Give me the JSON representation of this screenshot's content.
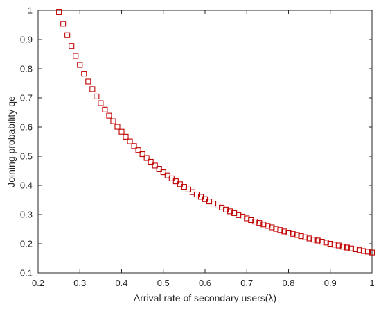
{
  "chart_data": {
    "type": "scatter",
    "title": "",
    "xlabel": "Arrival rate of secondary users(λ)",
    "ylabel": "Joining probability qe",
    "xlim": [
      0.2,
      1.0
    ],
    "ylim": [
      0.1,
      1.0
    ],
    "xticks": [
      "0.2",
      "0.3",
      "0.4",
      "0.5",
      "0.6",
      "0.7",
      "0.8",
      "0.9",
      "1"
    ],
    "yticks": [
      "0.1",
      "0.2",
      "0.3",
      "0.4",
      "0.5",
      "0.6",
      "0.7",
      "0.8",
      "0.9",
      "1"
    ],
    "grid": false,
    "marker": "square",
    "marker_color": "#c00000",
    "series": [
      {
        "x": [
          0.25,
          0.26,
          0.27,
          0.28,
          0.29,
          0.3,
          0.31,
          0.32,
          0.33,
          0.34,
          0.35,
          0.36,
          0.37,
          0.38,
          0.39,
          0.4,
          0.41,
          0.42,
          0.43,
          0.44,
          0.45,
          0.46,
          0.47,
          0.48,
          0.49,
          0.5,
          0.51,
          0.52,
          0.53,
          0.54,
          0.55,
          0.56,
          0.57,
          0.58,
          0.59,
          0.6,
          0.61,
          0.62,
          0.63,
          0.64,
          0.65,
          0.66,
          0.67,
          0.68,
          0.69,
          0.7,
          0.71,
          0.72,
          0.73,
          0.74,
          0.75,
          0.76,
          0.77,
          0.78,
          0.79,
          0.8,
          0.81,
          0.82,
          0.83,
          0.84,
          0.85,
          0.86,
          0.87,
          0.88,
          0.89,
          0.9,
          0.91,
          0.92,
          0.93,
          0.94,
          0.95,
          0.96,
          0.97,
          0.98,
          0.99,
          1.0
        ],
        "y": [
          0.995,
          0.954,
          0.915,
          0.878,
          0.844,
          0.813,
          0.783,
          0.756,
          0.73,
          0.705,
          0.682,
          0.66,
          0.639,
          0.62,
          0.601,
          0.584,
          0.567,
          0.551,
          0.535,
          0.521,
          0.507,
          0.494,
          0.481,
          0.468,
          0.457,
          0.445,
          0.434,
          0.424,
          0.414,
          0.404,
          0.395,
          0.386,
          0.377,
          0.369,
          0.361,
          0.353,
          0.345,
          0.338,
          0.331,
          0.324,
          0.317,
          0.311,
          0.305,
          0.298,
          0.293,
          0.287,
          0.281,
          0.276,
          0.271,
          0.266,
          0.261,
          0.256,
          0.251,
          0.247,
          0.242,
          0.238,
          0.234,
          0.23,
          0.226,
          0.222,
          0.218,
          0.214,
          0.211,
          0.207,
          0.204,
          0.2,
          0.197,
          0.194,
          0.19,
          0.187,
          0.184,
          0.181,
          0.178,
          0.175,
          0.173,
          0.17
        ]
      }
    ]
  }
}
